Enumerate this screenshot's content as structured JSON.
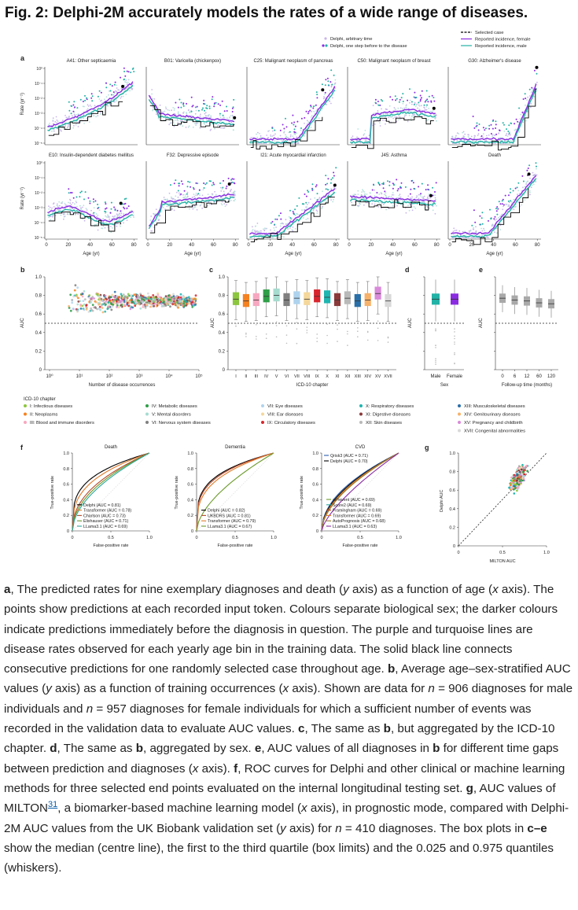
{
  "title": "Fig. 2: Delphi-2M accurately models the rates of a wide range of diseases.",
  "panels": {
    "a": {
      "letter": "a",
      "legend_points": [
        "Delphi, arbitrary time",
        "Delphi, one step before to the disease"
      ],
      "legend_lines": [
        "Selected case",
        "Reported incidence, female",
        "Reported incidence, male"
      ],
      "subplots": [
        {
          "title": "A41: Other septicaemia"
        },
        {
          "title": "B01: Varicella (chickenpox)"
        },
        {
          "title": "C25: Malignant neoplasm of pancreas"
        },
        {
          "title": "C50: Malignant neoplasm of breast"
        },
        {
          "title": "G30: Alzheimer's disease"
        },
        {
          "title": "E10: Insulin-dependent diabetes mellitus"
        },
        {
          "title": "F32: Depressive episode"
        },
        {
          "title": "I21: Acute myocardial infarction"
        },
        {
          "title": "J45: Asthma"
        },
        {
          "title": "Death"
        }
      ],
      "ylabel": "Rate (yr⁻¹)",
      "xlabel": "Age (yr)",
      "xticks": [
        "0",
        "20",
        "40",
        "60",
        "80"
      ],
      "yticks": [
        "10⁰",
        "10⁻¹",
        "10⁻²",
        "10⁻³",
        "10⁻⁴",
        "10⁻⁵"
      ]
    },
    "b": {
      "letter": "b",
      "ylabel": "AUC",
      "xlabel": "Number of disease occurrences",
      "yticks": [
        "1.0",
        "0.8",
        "0.6",
        "0.4",
        "0.2",
        "0"
      ],
      "xticks": [
        "10⁰",
        "10¹",
        "10²",
        "10³",
        "10⁴",
        "10⁵"
      ]
    },
    "c": {
      "letter": "c",
      "ylabel": "AUC",
      "xlabel": "ICD-10 chapter",
      "yticks": [
        "1.0",
        "0.8",
        "0.6",
        "0.4",
        "0.2",
        "0"
      ],
      "xticks": [
        "I",
        "II",
        "III",
        "IV",
        "V",
        "VI",
        "VII",
        "VIII",
        "IX",
        "X",
        "XI",
        "XII",
        "XIII",
        "XIV",
        "XV",
        "XVII"
      ]
    },
    "d": {
      "letter": "d",
      "ylabel": "AUC",
      "xlabel": "Sex",
      "xticks": [
        "Male",
        "Female"
      ],
      "yticks": [
        "1.0",
        "0.8",
        "0.6",
        "0.4",
        "0.2",
        "0"
      ]
    },
    "e": {
      "letter": "e",
      "ylabel": "AUC",
      "xlabel": "Follow-up time (months)",
      "xticks": [
        "0",
        "6",
        "12",
        "60",
        "120"
      ],
      "yticks": [
        "1.0",
        "0.8",
        "0.6",
        "0.4",
        "0.2",
        "0"
      ]
    },
    "icd_legend": {
      "title": "ICD-10 chapter",
      "items": [
        {
          "label": "I: Infectious diseases",
          "color": "#8cc63f"
        },
        {
          "label": "II: Neoplasms",
          "color": "#f58220"
        },
        {
          "label": "III: Blood and immune disorders",
          "color": "#f7a8c0"
        },
        {
          "label": "IV: Metabolic diseases",
          "color": "#2e9e47"
        },
        {
          "label": "V: Mental disorders",
          "color": "#a6dcd0"
        },
        {
          "label": "VI: Nervous system diseases",
          "color": "#808080"
        },
        {
          "label": "VII: Eye diseases",
          "color": "#aed3ee"
        },
        {
          "label": "VIII: Ear diseases",
          "color": "#f4d79b"
        },
        {
          "label": "IX: Circulatory diseases",
          "color": "#d7262c"
        },
        {
          "label": "X: Respiratory diseases",
          "color": "#1fb5b0"
        },
        {
          "label": "XI: Digestive diseases",
          "color": "#8b3a3a"
        },
        {
          "label": "XII: Skin diseases",
          "color": "#b9b9b9"
        },
        {
          "label": "XIII: Musculoskeletal diseases",
          "color": "#2a6fa8"
        },
        {
          "label": "XIV: Genitourinary diseases",
          "color": "#f6b26b"
        },
        {
          "label": "XV: Pregnancy and childbirth",
          "color": "#d98ad9"
        },
        {
          "label": "XVII: Congenital abnormalities",
          "color": "#d9d9d9"
        }
      ]
    },
    "f": {
      "letter": "f",
      "ylabel": "True-positive rate",
      "xlabel": "False-positive rate",
      "ticks": [
        "0",
        "0.5",
        "1.0"
      ],
      "yticks": [
        "1.0",
        "0.8",
        "0.6",
        "0.4",
        "0.2",
        "0"
      ],
      "plots": [
        {
          "title": "Death",
          "legend": [
            {
              "label": "Delphi (AUC = 0.81)",
              "color": "#000000"
            },
            {
              "label": "Transformer (AUC = 0.78)",
              "color": "#e07b2a"
            },
            {
              "label": "Charlson (AUC = 0.73)",
              "color": "#b5482a"
            },
            {
              "label": "Elixhauser (AUC = 0.71)",
              "color": "#6b9a2a"
            },
            {
              "label": "LLama3.1 (AUC = 0.69)",
              "color": "#2aa79b"
            }
          ]
        },
        {
          "title": "Dementia",
          "legend": [
            {
              "label": "Delphi (AUC = 0.82)",
              "color": "#000000"
            },
            {
              "label": "UKBDRS (AUC = 0.81)",
              "color": "#b5482a"
            },
            {
              "label": "Transformer (AUC = 0.79)",
              "color": "#e07b2a"
            },
            {
              "label": "LLama3.1 (AUC = 0.67)",
              "color": "#6b9a2a"
            }
          ]
        },
        {
          "title": "CVD",
          "legend_top": [
            {
              "label": "Qrisk3 (AUC = 0.71)",
              "color": "#2a5fb0"
            },
            {
              "label": "Delphi (AUC = 0.70)",
              "color": "#000000"
            }
          ],
          "legend": [
            {
              "label": "aPrevent (AUC = 0.69)",
              "color": "#6b9a2a"
            },
            {
              "label": "Score2 (AUC = 0.69)",
              "color": "#2aa79b"
            },
            {
              "label": "Framingham (AUC = 0.69)",
              "color": "#b5482a"
            },
            {
              "label": "Transformer (AUC = 0.69)",
              "color": "#e07b2a"
            },
            {
              "label": "AutoPrognosis (AUC = 0.68)",
              "color": "#9a7b2a"
            },
            {
              "label": "LLama3.1 (AUC = 0.63)",
              "color": "#8a2aa7"
            }
          ]
        }
      ]
    },
    "g": {
      "letter": "g",
      "ylabel": "Delphi AUC",
      "xlabel": "MILTON AUC",
      "yticks": [
        "1.0",
        "0.8",
        "0.6",
        "0.4",
        "0.2",
        "0"
      ],
      "xticks": [
        "0",
        "0.5",
        "1.0"
      ]
    }
  },
  "caption": {
    "a": "a",
    "a_text": ", The predicted rates for nine exemplary diagnoses and death (",
    "y1": "y",
    "a_text2": " axis) as a function of age (",
    "x1": "x",
    "a_text3": " axis). The points show predictions at each recorded input token. Colours separate biological sex; the darker colours indicate predictions immediately before the diagnosis in question. The purple and turquoise lines are disease rates observed for each yearly age bin in the training data. The solid black line connects consecutive predictions for one randomly selected case throughout age. ",
    "b": "b",
    "b_text": ", Average age–sex-stratified AUC values (",
    "y2": "y",
    "b_text2": " axis) as a function of training occurrences (",
    "x2": "x",
    "b_text3": " axis). Shown are data for ",
    "n1": "n",
    "b_text4": " = 906 diagnoses for male individuals and ",
    "n2": "n",
    "b_text5": " = 957 diagnoses for female individuals for which a sufficient number of events was recorded in the validation data to evaluate AUC values. ",
    "c": "c",
    "c_text": ", The same as ",
    "c_b": "b",
    "c_text2": ", but aggregated by the ICD-10 chapter. ",
    "d": "d",
    "d_text": ", The same as ",
    "d_b": "b",
    "d_text2": ", aggregated by sex. ",
    "e": "e",
    "e_text": ", AUC values of all diagnoses in ",
    "e_b": "b",
    "e_text2": " for different time gaps between prediction and diagnoses (",
    "x3": "x",
    "e_text3": " axis). ",
    "f": "f",
    "f_text": ", ROC curves for Delphi and other clinical or machine learning methods for three selected end points evaluated on the internal longitudinal testing set. ",
    "g": "g",
    "g_text": ", AUC values of MILTON",
    "g_ref": "31",
    "g_text2": ", a biomarker-based machine learning model (",
    "x4": "x",
    "g_text3": " axis), in prognostic mode, compared with Delphi-2M AUC values from the UK Biobank validation set (",
    "y3": "y",
    "g_text4": " axis) for ",
    "n3": "n",
    "g_text5": " = 410 diagnoses. The box plots in ",
    "ce": "c–e",
    "g_text6": " show the median (centre line), the first to the third quartile (box limits) and the 0.025 and 0.975 quantiles (whiskers)."
  },
  "colors": {
    "purple": "#8a2be2",
    "teal": "#22b2a6",
    "lightpurple": "#c9b5ea",
    "lightteal": "#b7e2dc"
  }
}
